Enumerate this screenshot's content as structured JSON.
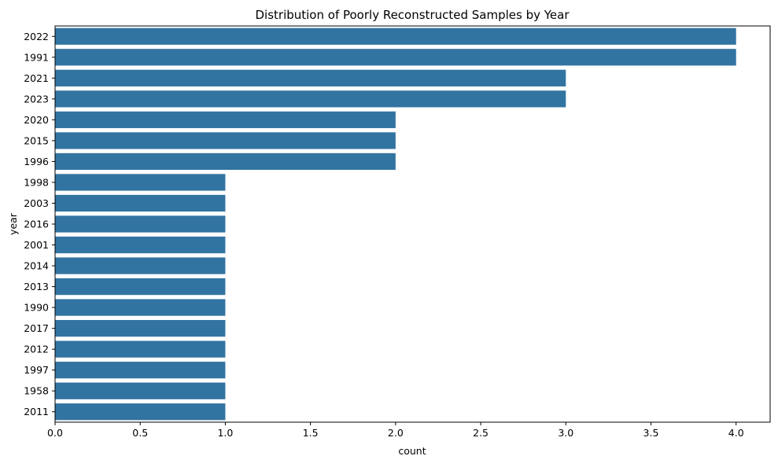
{
  "chart_data": {
    "type": "bar",
    "orientation": "horizontal",
    "title": "Distribution of Poorly Reconstructed Samples by Year",
    "xlabel": "count",
    "ylabel": "year",
    "categories": [
      "2022",
      "1991",
      "2021",
      "2023",
      "2020",
      "2015",
      "1996",
      "1998",
      "2003",
      "2016",
      "2001",
      "2014",
      "2013",
      "1990",
      "2017",
      "2012",
      "1997",
      "1958",
      "2011"
    ],
    "values": [
      4,
      4,
      3,
      3,
      2,
      2,
      2,
      1,
      1,
      1,
      1,
      1,
      1,
      1,
      1,
      1,
      1,
      1,
      1
    ],
    "xlim": [
      0,
      4.2
    ],
    "xticks": [
      0.0,
      0.5,
      1.0,
      1.5,
      2.0,
      2.5,
      3.0,
      3.5,
      4.0
    ],
    "xtick_labels": [
      "0.0",
      "0.5",
      "1.0",
      "1.5",
      "2.0",
      "2.5",
      "3.0",
      "3.5",
      "4.0"
    ],
    "grid": false,
    "legend": "none",
    "colors": {
      "bar": "#3274a1"
    }
  }
}
